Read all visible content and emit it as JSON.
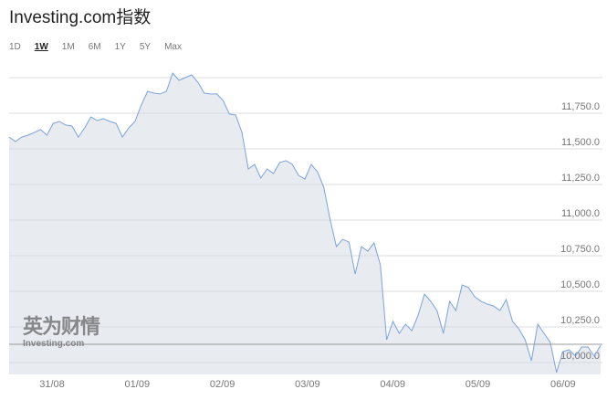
{
  "header": {
    "title": "Investing.com指数"
  },
  "ranges": [
    {
      "label": "1D"
    },
    {
      "label": "1W",
      "active": true
    },
    {
      "label": "1M"
    },
    {
      "label": "6M"
    },
    {
      "label": "1Y"
    },
    {
      "label": "5Y"
    },
    {
      "label": "Max"
    }
  ],
  "watermark": {
    "cn": "英为财情",
    "en": "Investing.com"
  },
  "colors": {
    "line": "#7aa3dc",
    "fill": "#e8ebf0",
    "grid": "#d9dce1",
    "reference": "#999999"
  },
  "chart_data": {
    "type": "area",
    "xlabel": "",
    "ylabel": "",
    "x_ticks": [
      "31/08",
      "01/09",
      "02/09",
      "03/09",
      "04/09",
      "05/09",
      "06/09"
    ],
    "y_ticks": [
      10000,
      10250,
      10500,
      10750,
      11000,
      11250,
      11500,
      11750
    ],
    "y_tick_labels": [
      "10,000.0",
      "10,250.0",
      "10,500.0",
      "10,750.0",
      "11,000.0",
      "11,250.0",
      "11,500.0",
      "11,750.0"
    ],
    "ylim": [
      9830,
      12000
    ],
    "y_axis_side": "right",
    "grid": true,
    "reference_line": 10128,
    "values": [
      11583,
      11551,
      11583,
      11596,
      11615,
      11635,
      11596,
      11679,
      11692,
      11667,
      11660,
      11583,
      11647,
      11724,
      11699,
      11712,
      11692,
      11679,
      11583,
      11647,
      11692,
      11808,
      11904,
      11891,
      11885,
      11904,
      12032,
      11981,
      12000,
      12019,
      11968,
      11891,
      11885,
      11885,
      11840,
      11744,
      11737,
      11615,
      11359,
      11391,
      11295,
      11359,
      11327,
      11404,
      11417,
      11391,
      11314,
      11288,
      11391,
      11340,
      11231,
      11006,
      10814,
      10865,
      10846,
      10622,
      10814,
      10782,
      10840,
      10686,
      10160,
      10289,
      10205,
      10269,
      10224,
      10333,
      10481,
      10430,
      10365,
      10205,
      10430,
      10365,
      10545,
      10526,
      10462,
      10430,
      10410,
      10397,
      10365,
      10442,
      10289,
      10237,
      10160,
      10013,
      10269,
      10205,
      10141,
      9930,
      10077,
      10090,
      10045,
      10109,
      10109,
      10045,
      10122
    ]
  }
}
